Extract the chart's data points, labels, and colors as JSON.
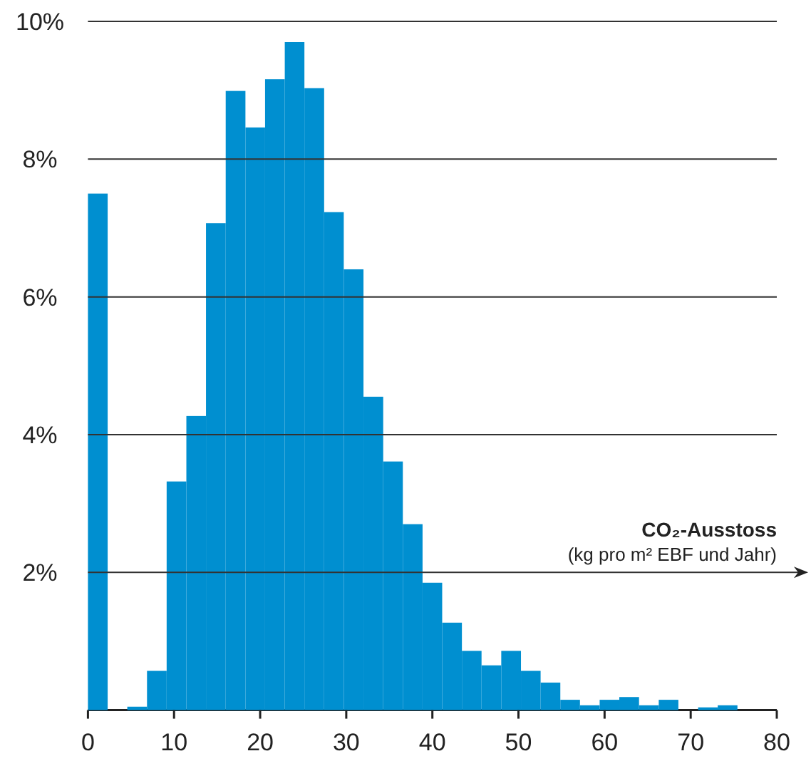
{
  "chart_data": {
    "type": "histogram",
    "xlabel": "CO₂-Ausstoss\n(kg pro m² EBF und Jahr)",
    "bins": [
      0,
      2.29,
      4.57,
      6.86,
      9.14,
      11.43,
      13.71,
      16,
      18.29,
      20.57,
      22.86,
      25.14,
      27.43,
      29.71,
      32,
      34.29,
      36.57,
      38.86,
      41.14,
      43.43,
      45.71,
      48,
      50.29,
      52.57,
      54.86,
      57.14,
      59.43,
      61.71,
      64,
      66.29,
      68.57,
      70.86,
      73.14,
      75.43,
      77.71,
      80
    ],
    "values": [
      7.5,
      0,
      0.05,
      0.57,
      3.32,
      4.27,
      7.07,
      8.99,
      8.46,
      9.16,
      9.7,
      9.03,
      7.23,
      6.4,
      4.55,
      3.61,
      2.7,
      1.85,
      1.27,
      0.86,
      0.65,
      0.86,
      0.57,
      0.4,
      0.15,
      0.07,
      0.15,
      0.19,
      0.07,
      0.15,
      0,
      0.04,
      0.07,
      0,
      0
    ],
    "color": "#008fd0",
    "xlim": [
      0,
      80
    ],
    "xticks": [
      0,
      10,
      20,
      30,
      40,
      50,
      60,
      70,
      80
    ],
    "ylim": [
      0,
      10
    ],
    "yticks": [
      {
        "value": 2,
        "label": "2%"
      },
      {
        "value": 4,
        "label": "4%"
      },
      {
        "value": 6,
        "label": "6%"
      },
      {
        "value": 8,
        "label": "8%"
      },
      {
        "value": 10,
        "label": "10%"
      }
    ],
    "grid": "y"
  }
}
